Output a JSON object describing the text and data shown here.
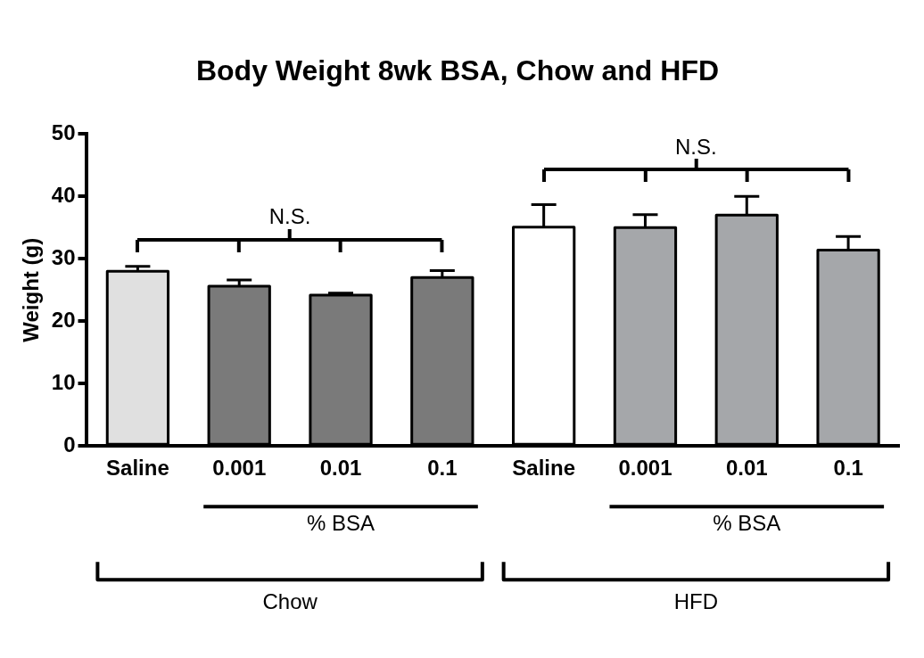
{
  "chart_data": {
    "type": "bar",
    "title": "Body Weight 8wk BSA, Chow and HFD",
    "ylabel": "Weight (g)",
    "categories": [
      "Saline",
      "0.001",
      "0.01",
      "0.1",
      "Saline",
      "0.001",
      "0.01",
      "0.1"
    ],
    "values": [
      28,
      25.6,
      24.2,
      27,
      35.1,
      35,
      37,
      31.4
    ],
    "errors": [
      [
        28,
        28.8
      ],
      [
        25.6,
        26.6
      ],
      [
        24.2,
        24.5
      ],
      [
        27,
        28.1
      ],
      [
        35.1,
        38.7
      ],
      [
        35,
        37.1
      ],
      [
        37,
        40
      ],
      [
        31.4,
        33.6
      ]
    ],
    "colors": [
      "#e0e0e0",
      "#7a7a7a",
      "#7a7a7a",
      "#7a7a7a",
      "#ffffff",
      "#a5a7aa",
      "#a5a7aa",
      "#a5a7aa"
    ],
    "ylim": [
      0,
      50
    ],
    "yticks": [
      0,
      10,
      20,
      30,
      40,
      50
    ],
    "grid": false,
    "legend": false,
    "annotations": [
      "N.S.",
      "N.S.",
      "% BSA",
      "% BSA",
      "Chow",
      "HFD"
    ]
  }
}
